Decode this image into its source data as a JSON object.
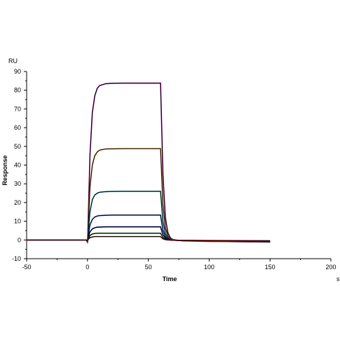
{
  "chart_data": {
    "type": "line",
    "title": "",
    "xlabel": "Time",
    "ylabel": "Response",
    "x_unit": "s",
    "y_unit": "RU",
    "xlim": [
      -50,
      200
    ],
    "ylim": [
      -10,
      90
    ],
    "x_ticks": [
      -50,
      0,
      50,
      100,
      150,
      200
    ],
    "y_ticks": [
      -10,
      0,
      10,
      20,
      30,
      40,
      50,
      60,
      70,
      80,
      90
    ],
    "grid": false,
    "legend": "none",
    "series": [
      {
        "color": "#000000",
        "fit_color": "#b000b0",
        "x": [
          -50,
          -1,
          0,
          1,
          2,
          4,
          6,
          8,
          10,
          15,
          20,
          30,
          40,
          50,
          60,
          61,
          62,
          64,
          66,
          68,
          70,
          75,
          80,
          100,
          150
        ],
        "y": [
          0,
          0,
          -1.5,
          20,
          45,
          68,
          77,
          81,
          82.5,
          83.5,
          83.7,
          83.8,
          83.8,
          83.8,
          83.8,
          60,
          35,
          12,
          4,
          1.2,
          0.3,
          -0.3,
          -0.5,
          -0.8,
          -1.2
        ]
      },
      {
        "color": "#000000",
        "fit_color": "#d08000",
        "x": [
          -50,
          -1,
          0,
          1,
          2,
          4,
          6,
          8,
          10,
          15,
          20,
          30,
          40,
          50,
          60,
          61,
          62,
          64,
          66,
          68,
          70,
          75,
          80,
          100,
          150
        ],
        "y": [
          0,
          0,
          -1.2,
          12,
          28,
          40,
          45,
          47,
          48,
          48.6,
          48.7,
          48.8,
          48.8,
          48.8,
          48.8,
          34,
          19,
          6.5,
          2.2,
          0.6,
          0.1,
          -0.3,
          -0.5,
          -0.8,
          -1.1
        ]
      },
      {
        "color": "#000000",
        "fit_color": "#00a0b0",
        "x": [
          -50,
          -1,
          0,
          1,
          2,
          4,
          6,
          8,
          10,
          15,
          20,
          30,
          40,
          50,
          60,
          61,
          62,
          64,
          66,
          68,
          70,
          75,
          80,
          100,
          150
        ],
        "y": [
          0,
          0,
          -1.0,
          7,
          15,
          21.5,
          24,
          25,
          25.5,
          25.8,
          25.9,
          26.0,
          26.0,
          26.0,
          26.0,
          18,
          10,
          3.5,
          1.1,
          0.3,
          0,
          -0.3,
          -0.5,
          -0.7,
          -1.0
        ]
      },
      {
        "color": "#000000",
        "fit_color": "#0040ff",
        "x": [
          -50,
          -1,
          0,
          1,
          2,
          4,
          6,
          8,
          10,
          15,
          20,
          30,
          40,
          50,
          60,
          61,
          62,
          64,
          66,
          68,
          70,
          75,
          80,
          100,
          150
        ],
        "y": [
          0,
          0,
          -0.8,
          4,
          8,
          11,
          12.3,
          12.8,
          13.0,
          13.2,
          13.3,
          13.3,
          13.3,
          13.3,
          13.3,
          9.3,
          5.2,
          1.8,
          0.6,
          0.1,
          -0.1,
          -0.3,
          -0.4,
          -0.6,
          -0.9
        ]
      },
      {
        "color": "#000000",
        "fit_color": "#0000c0",
        "x": [
          -50,
          -1,
          0,
          1,
          2,
          4,
          6,
          8,
          10,
          15,
          20,
          30,
          40,
          50,
          60,
          61,
          62,
          64,
          66,
          68,
          70,
          75,
          80,
          100,
          150
        ],
        "y": [
          0,
          0,
          -0.6,
          2.2,
          4.3,
          5.9,
          6.5,
          6.8,
          6.9,
          7.0,
          7.0,
          7.0,
          7.0,
          7.0,
          7.0,
          4.9,
          2.8,
          1.0,
          0.3,
          0,
          -0.1,
          -0.3,
          -0.4,
          -0.5,
          -0.8
        ]
      },
      {
        "color": "#000000",
        "fit_color": "#008000",
        "x": [
          -50,
          -1,
          0,
          1,
          2,
          4,
          6,
          8,
          10,
          15,
          20,
          30,
          40,
          50,
          60,
          61,
          62,
          64,
          66,
          68,
          70,
          75,
          80,
          100,
          150
        ],
        "y": [
          0,
          0,
          -0.5,
          1.2,
          2.4,
          3.2,
          3.5,
          3.6,
          3.6,
          3.6,
          3.6,
          3.6,
          3.6,
          3.6,
          3.6,
          2.5,
          1.4,
          0.5,
          0.1,
          0,
          -0.1,
          -0.2,
          -0.3,
          -0.4,
          -0.6
        ]
      },
      {
        "color": "#000000",
        "fit_color": "#e00000",
        "x": [
          -50,
          -1,
          0,
          1,
          2,
          4,
          6,
          8,
          10,
          15,
          20,
          30,
          40,
          50,
          60,
          61,
          62,
          64,
          66,
          68,
          70,
          75,
          80,
          100,
          150
        ],
        "y": [
          0,
          0,
          -0.4,
          0.6,
          1.2,
          1.6,
          1.8,
          1.8,
          1.8,
          1.8,
          1.8,
          1.8,
          1.8,
          1.8,
          1.8,
          1.2,
          0.6,
          0.2,
          0,
          0,
          -0.1,
          -0.2,
          -0.2,
          -0.3,
          -0.4
        ]
      }
    ]
  }
}
